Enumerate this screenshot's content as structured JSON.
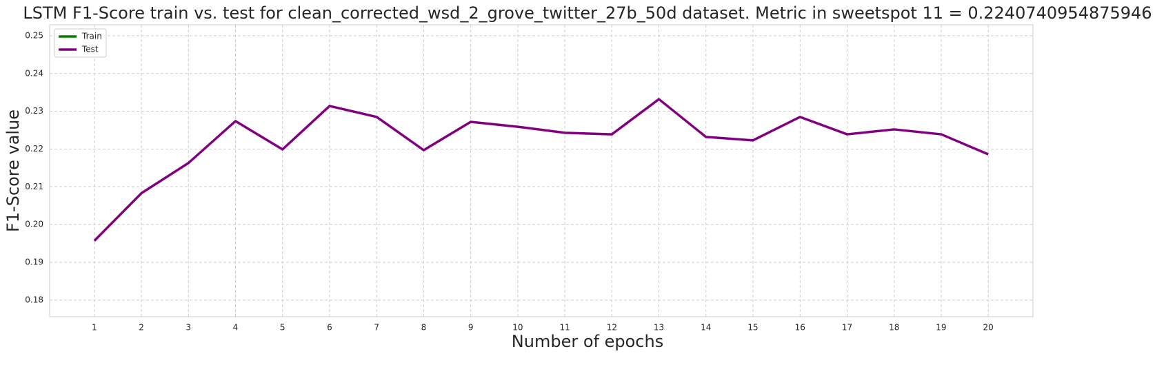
{
  "chart_data": {
    "type": "line",
    "title": "LSTM F1-Score train vs. test for clean_corrected_wsd_2_grove_twitter_27b_50d dataset. Metric in sweetspot 11 = 0.2240740954875946",
    "x_label": "Number of epochs",
    "y_label": "F1-Score value",
    "x": [
      1,
      2,
      3,
      4,
      5,
      6,
      7,
      8,
      9,
      10,
      11,
      12,
      13,
      14,
      15,
      16,
      17,
      18,
      19,
      20
    ],
    "series": [
      {
        "name": "Train",
        "color": "#008000",
        "values": [
          null,
          null,
          null,
          null,
          null,
          null,
          null,
          null,
          null,
          null,
          null,
          null,
          null,
          null,
          null,
          null,
          null,
          null,
          null,
          null
        ]
      },
      {
        "name": "Test",
        "color": "#800080",
        "values": [
          0.1957,
          0.2083,
          0.2163,
          0.2274,
          0.2199,
          0.2314,
          0.2285,
          0.2197,
          0.2272,
          0.2259,
          0.2243,
          0.2239,
          0.2332,
          0.2232,
          0.2223,
          0.2285,
          0.2239,
          0.2252,
          0.2239,
          0.2186
        ]
      }
    ],
    "xlim": [
      0.05,
      20.95
    ],
    "ylim": [
      0.1756,
      0.2529
    ],
    "xticks": [
      1,
      2,
      3,
      4,
      5,
      6,
      7,
      8,
      9,
      10,
      11,
      12,
      13,
      14,
      15,
      16,
      17,
      18,
      19,
      20
    ],
    "yticks": [
      0.18,
      0.19,
      {
        "value": 0.2,
        "label": "0.20"
      },
      0.21,
      0.22,
      0.23,
      0.24,
      0.25
    ],
    "grid": true,
    "legend": "upper left"
  }
}
